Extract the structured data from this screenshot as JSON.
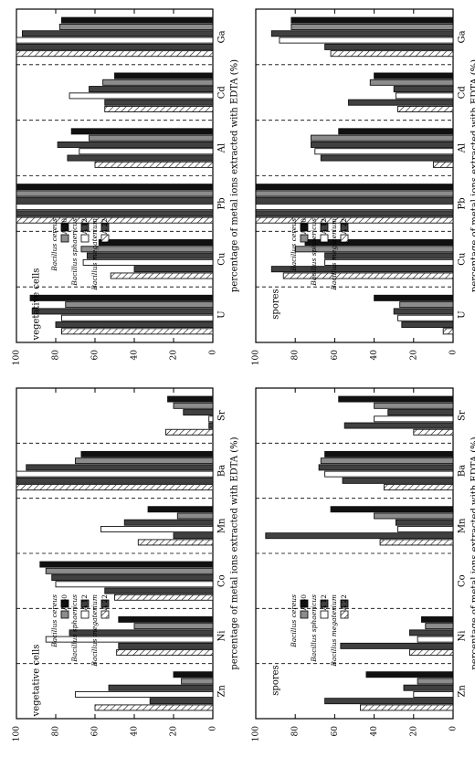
{
  "figure": {
    "ylabel": "percentage of metal ions extracted with EDTA (%)",
    "series_labels": [
      "Bacillus cereus",
      "A 30",
      "Bacillus sphaericus",
      "A 12",
      "Bacillus megaterium",
      "A 22"
    ],
    "colors": {
      "black": "#111111",
      "grey": "#8c8c8c",
      "darkgrey": "#404040",
      "white": "#ffffff"
    }
  },
  "chart_data": [
    {
      "type": "bar",
      "panel": "bottom-left",
      "label": "vegetative cells",
      "categories": [
        "Sr",
        "Ba",
        "Mn",
        "Co",
        "Ni",
        "Zn"
      ],
      "ylim": [
        0,
        100
      ],
      "yticks": [
        0,
        20,
        40,
        60,
        80,
        100
      ],
      "series": [
        {
          "name": "Bacillus cereus",
          "values": [
            23,
            67,
            33,
            88,
            48,
            20
          ]
        },
        {
          "name": "A 30",
          "values": [
            20,
            70,
            18,
            85,
            40,
            16
          ]
        },
        {
          "name": "Bacillus sphaericus",
          "values": [
            15,
            95,
            45,
            82,
            73,
            53
          ]
        },
        {
          "name": "A 12",
          "values": [
            2,
            100,
            57,
            80,
            85,
            70
          ]
        },
        {
          "name": "Bacillus megaterium",
          "values": [
            2,
            100,
            20,
            55,
            48,
            32
          ]
        },
        {
          "name": "A 22",
          "values": [
            24,
            100,
            38,
            50,
            49,
            60
          ]
        }
      ]
    },
    {
      "type": "bar",
      "panel": "top-left",
      "label": "spores",
      "categories": [
        "Sr",
        "Ba",
        "Mn",
        "Co",
        "Ni",
        "Zn"
      ],
      "ylim": [
        0,
        100
      ],
      "yticks": [
        0,
        20,
        40,
        60,
        80,
        100
      ],
      "series": [
        {
          "name": "Bacillus cereus",
          "values": [
            58,
            65,
            62,
            0,
            16,
            44
          ]
        },
        {
          "name": "A 30",
          "values": [
            40,
            67,
            40,
            0,
            14,
            18
          ]
        },
        {
          "name": "Bacillus sphaericus",
          "values": [
            33,
            68,
            29,
            0,
            22,
            25
          ]
        },
        {
          "name": "A 12",
          "values": [
            40,
            65,
            28,
            0,
            18,
            20
          ]
        },
        {
          "name": "Bacillus megaterium",
          "values": [
            55,
            56,
            95,
            0,
            57,
            65
          ]
        },
        {
          "name": "A 22",
          "values": [
            20,
            35,
            37,
            0,
            22,
            47
          ]
        }
      ]
    },
    {
      "type": "bar",
      "panel": "bottom-right",
      "label": "vegetative cells",
      "categories": [
        "Ga",
        "Cd",
        "Al",
        "Pb",
        "Cu",
        "U"
      ],
      "ylim": [
        0,
        100
      ],
      "yticks": [
        0,
        20,
        40,
        60,
        80,
        100
      ],
      "series": [
        {
          "name": "Bacillus cereus",
          "values": [
            77,
            50,
            72,
            100,
            58,
            93
          ]
        },
        {
          "name": "A 30",
          "values": [
            78,
            56,
            63,
            100,
            67,
            75
          ]
        },
        {
          "name": "Bacillus sphaericus",
          "values": [
            97,
            63,
            79,
            100,
            64,
            92
          ]
        },
        {
          "name": "A 12",
          "values": [
            100,
            73,
            68,
            100,
            66,
            77
          ]
        },
        {
          "name": "Bacillus megaterium",
          "values": [
            100,
            55,
            74,
            100,
            40,
            80
          ]
        },
        {
          "name": "A 22",
          "values": [
            100,
            55,
            60,
            100,
            52,
            77
          ]
        }
      ]
    },
    {
      "type": "bar",
      "panel": "top-right",
      "label": "spores",
      "categories": [
        "Ga",
        "Cd",
        "Al",
        "Pb",
        "Cu",
        "U"
      ],
      "ylim": [
        0,
        100
      ],
      "yticks": [
        0,
        20,
        40,
        60,
        80,
        100
      ],
      "series": [
        {
          "name": "Bacillus cereus",
          "values": [
            82,
            40,
            58,
            100,
            75,
            40
          ]
        },
        {
          "name": "A 30",
          "values": [
            82,
            42,
            72,
            100,
            80,
            27
          ]
        },
        {
          "name": "Bacillus sphaericus",
          "values": [
            92,
            30,
            72,
            100,
            65,
            30
          ]
        },
        {
          "name": "A 12",
          "values": [
            88,
            29,
            70,
            100,
            65,
            28
          ]
        },
        {
          "name": "Bacillus megaterium",
          "values": [
            65,
            53,
            67,
            100,
            92,
            26
          ]
        },
        {
          "name": "A 22",
          "values": [
            62,
            28,
            10,
            100,
            86,
            5
          ]
        }
      ]
    }
  ]
}
